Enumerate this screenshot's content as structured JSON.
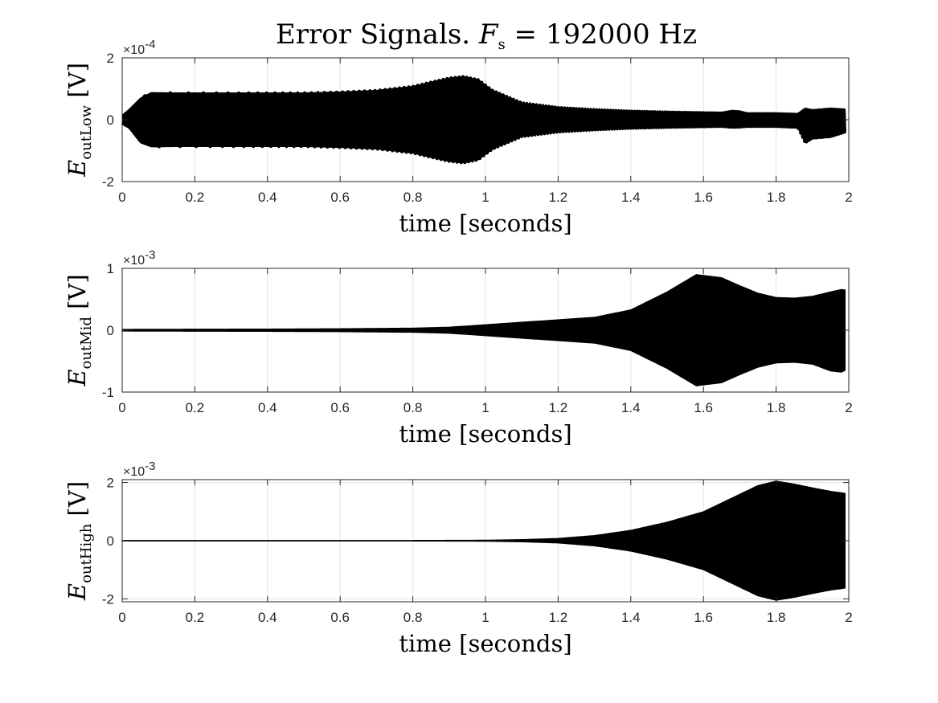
{
  "figure": {
    "title_pre": "Error Signals.  ",
    "title_var": "F",
    "title_sub": "s",
    "title_post": " = 192000 Hz"
  },
  "chart_data": [
    {
      "type": "line",
      "title": "Error Signals.  F_s = 192000 Hz",
      "xlabel": "time [seconds]",
      "ylabel_var": "E",
      "ylabel_sub": "outLow",
      "ylabel_unit": " [V]",
      "exponent": "×10",
      "exponent_power": "-4",
      "xlim": [
        0,
        2
      ],
      "ylim": [
        -2,
        2
      ],
      "xticks": [
        0,
        0.2,
        0.4,
        0.6,
        0.8,
        1,
        1.2,
        1.4,
        1.6,
        1.8,
        2
      ],
      "xtick_labels": [
        "0",
        "0.2",
        "0.4",
        "0.6",
        "0.8",
        "1",
        "1.2",
        "1.4",
        "1.6",
        "1.8",
        "2"
      ],
      "yticks": [
        -2,
        0,
        2
      ],
      "ytick_labels": [
        "-2",
        "0",
        "2"
      ],
      "grid": true,
      "series_color": "#000000",
      "signal": "chirp",
      "envelope": {
        "t": [
          0,
          0.02,
          0.05,
          0.08,
          0.15,
          0.2,
          0.3,
          0.4,
          0.5,
          0.6,
          0.7,
          0.8,
          0.85,
          0.9,
          0.94,
          0.98,
          1.02,
          1.1,
          1.2,
          1.3,
          1.4,
          1.5,
          1.6,
          1.65,
          1.68,
          1.7,
          1.72,
          1.8,
          1.86,
          1.88,
          1.9,
          1.95,
          1.99
        ],
        "upper": [
          0.15,
          0.35,
          0.7,
          0.88,
          0.87,
          0.87,
          0.87,
          0.87,
          0.87,
          0.9,
          0.95,
          1.08,
          1.22,
          1.35,
          1.4,
          1.3,
          0.95,
          0.55,
          0.4,
          0.33,
          0.28,
          0.25,
          0.23,
          0.22,
          0.28,
          0.26,
          0.2,
          0.2,
          0.18,
          0.35,
          0.3,
          0.35,
          0.32
        ],
        "lower": [
          -0.1,
          -0.3,
          -0.75,
          -0.88,
          -0.87,
          -0.87,
          -0.87,
          -0.87,
          -0.87,
          -0.9,
          -0.95,
          -1.08,
          -1.22,
          -1.35,
          -1.4,
          -1.3,
          -0.95,
          -0.55,
          -0.4,
          -0.33,
          -0.28,
          -0.25,
          -0.23,
          -0.22,
          -0.25,
          -0.24,
          -0.22,
          -0.22,
          -0.25,
          -0.75,
          -0.6,
          -0.55,
          -0.4
        ]
      }
    },
    {
      "type": "line",
      "xlabel": "time [seconds]",
      "ylabel_var": "E",
      "ylabel_sub": "outMid",
      "ylabel_unit": " [V]",
      "exponent": "×10",
      "exponent_power": "-3",
      "xlim": [
        0,
        2
      ],
      "ylim": [
        -1,
        1
      ],
      "xticks": [
        0,
        0.2,
        0.4,
        0.6,
        0.8,
        1,
        1.2,
        1.4,
        1.6,
        1.8,
        2
      ],
      "xtick_labels": [
        "0",
        "0.2",
        "0.4",
        "0.6",
        "0.8",
        "1",
        "1.2",
        "1.4",
        "1.6",
        "1.8",
        "2"
      ],
      "yticks": [
        -1,
        0,
        1
      ],
      "ytick_labels": [
        "-1",
        "0",
        "1"
      ],
      "grid": true,
      "series_color": "#000000",
      "signal": "dense",
      "envelope": {
        "t": [
          0,
          0.4,
          0.6,
          0.8,
          0.9,
          1.0,
          1.1,
          1.2,
          1.3,
          1.4,
          1.5,
          1.58,
          1.65,
          1.7,
          1.75,
          1.8,
          1.85,
          1.9,
          1.95,
          1.98,
          1.99
        ],
        "upper": [
          0.015,
          0.02,
          0.025,
          0.035,
          0.05,
          0.09,
          0.13,
          0.17,
          0.21,
          0.33,
          0.62,
          0.9,
          0.85,
          0.72,
          0.6,
          0.53,
          0.52,
          0.55,
          0.62,
          0.66,
          0.65
        ],
        "lower": [
          -0.015,
          -0.02,
          -0.025,
          -0.035,
          -0.05,
          -0.09,
          -0.13,
          -0.17,
          -0.21,
          -0.33,
          -0.62,
          -0.9,
          -0.85,
          -0.72,
          -0.6,
          -0.53,
          -0.52,
          -0.55,
          -0.66,
          -0.68,
          -0.65
        ]
      }
    },
    {
      "type": "line",
      "xlabel": "time [seconds]",
      "ylabel_var": "E",
      "ylabel_sub": "outHigh",
      "ylabel_unit": " [V]",
      "exponent": "×10",
      "exponent_power": "-3",
      "xlim": [
        0,
        2
      ],
      "ylim": [
        -2.1,
        2.1
      ],
      "xticks": [
        0,
        0.2,
        0.4,
        0.6,
        0.8,
        1,
        1.2,
        1.4,
        1.6,
        1.8,
        2
      ],
      "xtick_labels": [
        "0",
        "0.2",
        "0.4",
        "0.6",
        "0.8",
        "1",
        "1.2",
        "1.4",
        "1.6",
        "1.8",
        "2"
      ],
      "yticks": [
        -2,
        0,
        2
      ],
      "ytick_labels": [
        "-2",
        "0",
        "2"
      ],
      "grid": true,
      "series_color": "#000000",
      "signal": "dense",
      "envelope": {
        "t": [
          0,
          0.8,
          1.0,
          1.1,
          1.2,
          1.3,
          1.4,
          1.5,
          1.6,
          1.7,
          1.75,
          1.8,
          1.85,
          1.9,
          1.95,
          1.98,
          1.99
        ],
        "upper": [
          0.01,
          0.012,
          0.02,
          0.04,
          0.08,
          0.18,
          0.36,
          0.64,
          1.0,
          1.6,
          1.9,
          2.05,
          1.95,
          1.82,
          1.7,
          1.65,
          1.63
        ],
        "lower": [
          -0.01,
          -0.012,
          -0.02,
          -0.04,
          -0.08,
          -0.18,
          -0.36,
          -0.64,
          -1.0,
          -1.6,
          -1.9,
          -2.05,
          -1.95,
          -1.82,
          -1.7,
          -1.65,
          -1.63
        ]
      }
    }
  ]
}
